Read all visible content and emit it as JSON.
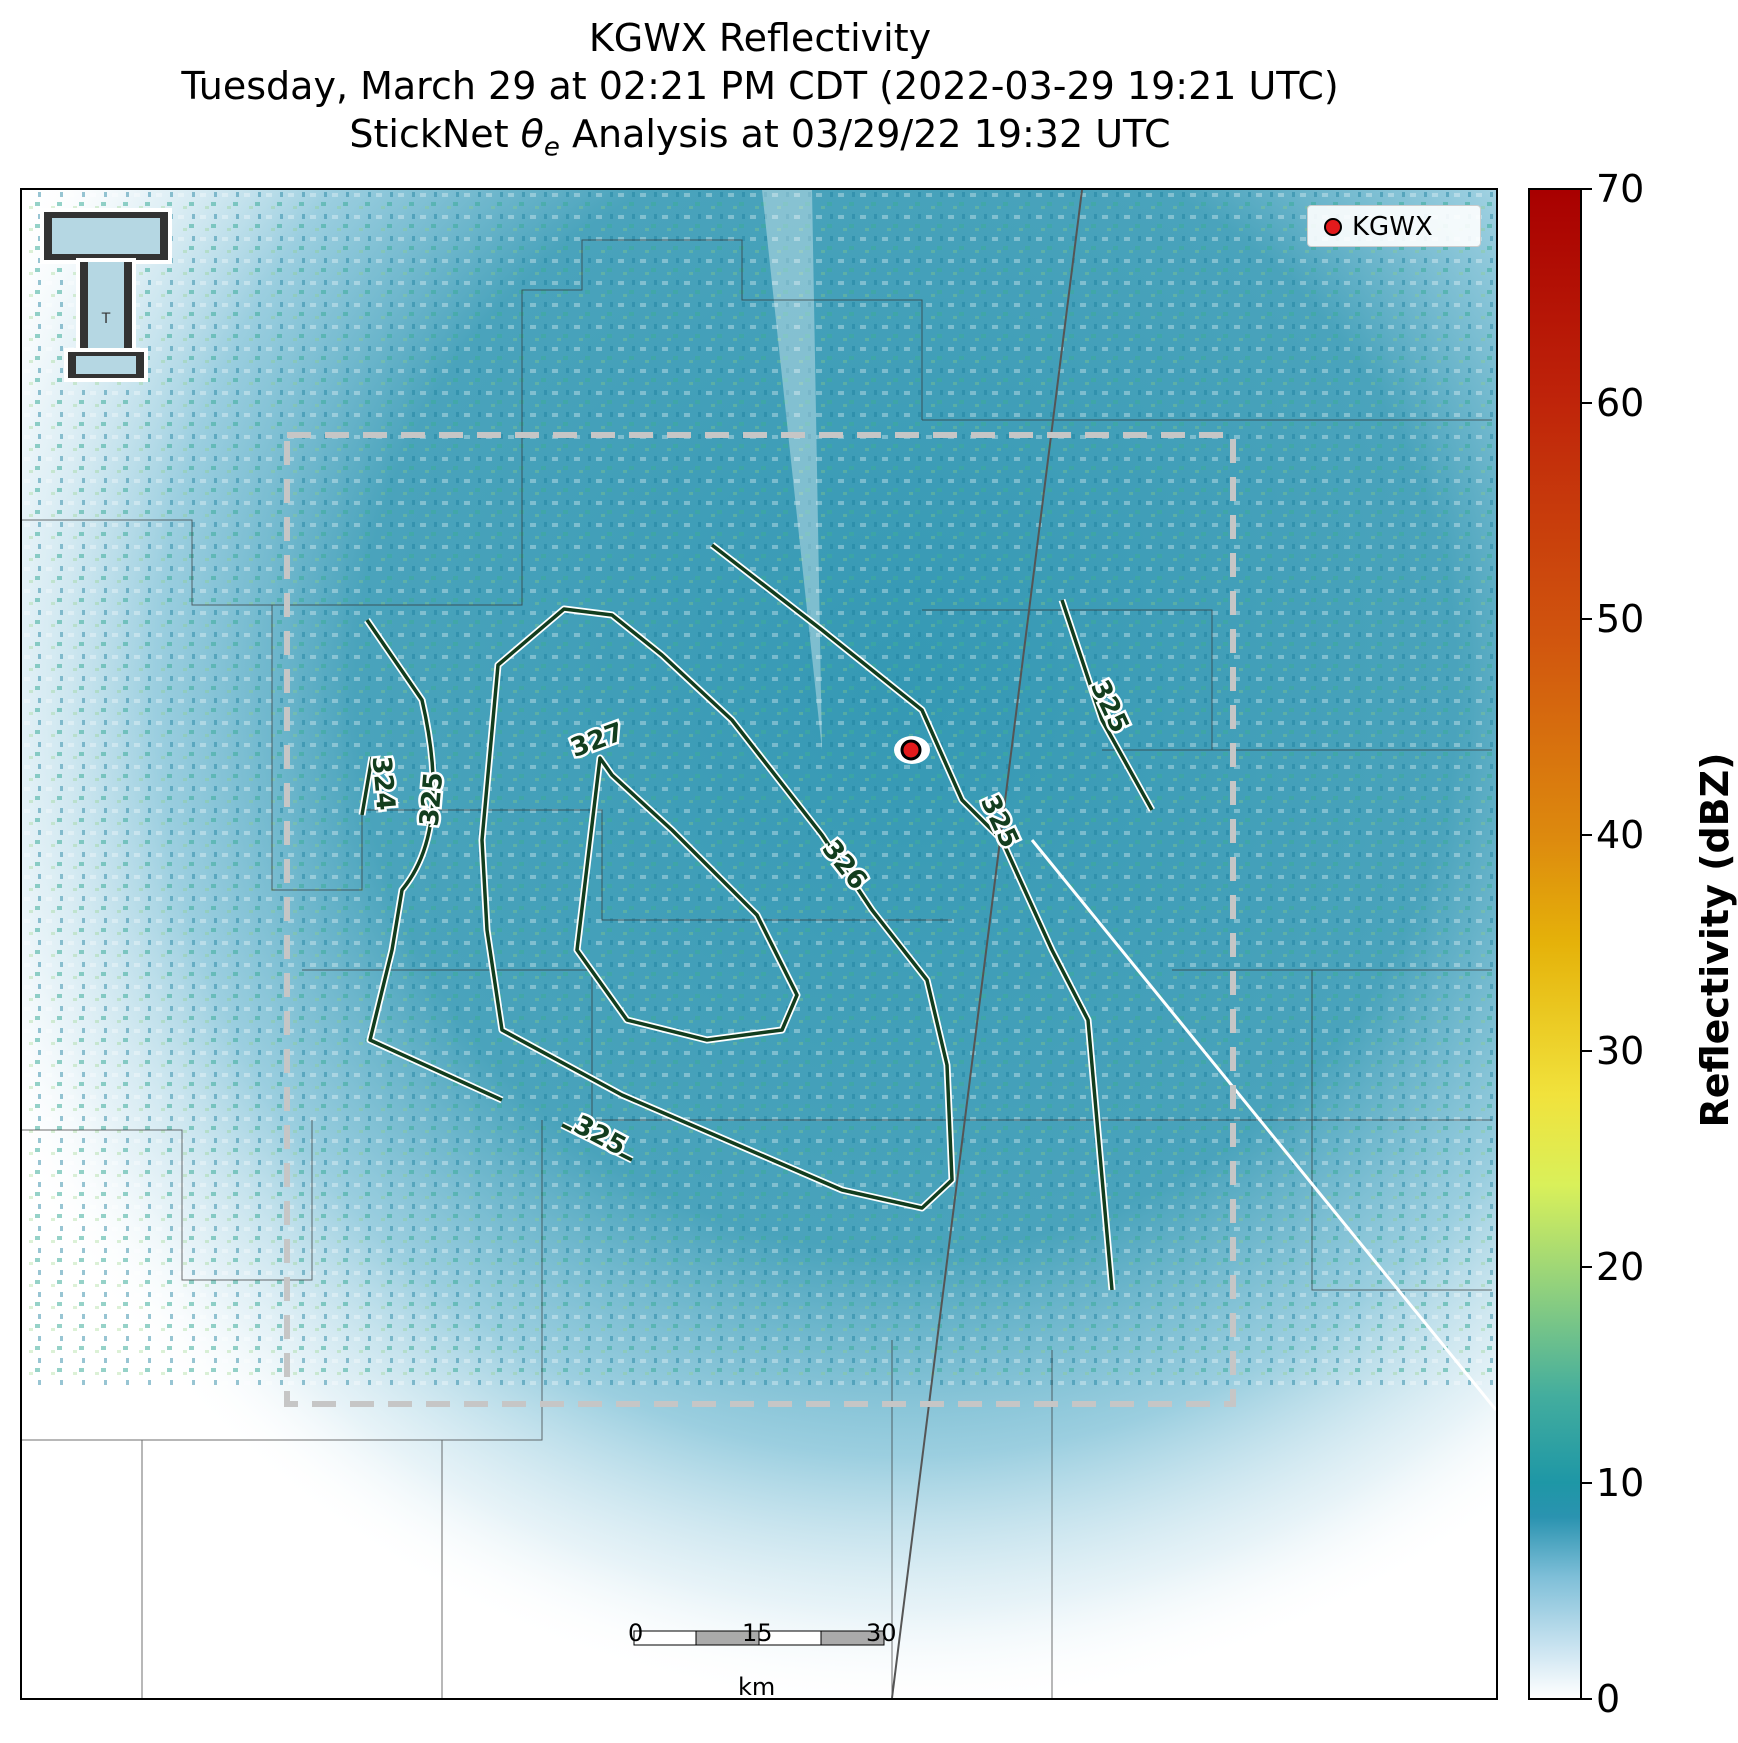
{
  "title": {
    "line1": "KGWX Reflectivity",
    "line2": "Tuesday, March 29 at 02:21 PM CDT (2022-03-29 19:21 UTC)",
    "line3_prefix": "StickNet ",
    "line3_symbol": "θ",
    "line3_subscript": "e",
    "line3_suffix": " Analysis at 03/29/22 19:32 UTC"
  },
  "legend": {
    "label": "KGWX",
    "marker_color": "#e31a1c"
  },
  "colorbar": {
    "label": "Reflectivity (dBZ)",
    "ticks": [
      "0",
      "10",
      "20",
      "30",
      "40",
      "50",
      "60",
      "70"
    ],
    "range": [
      0,
      70
    ],
    "colors": [
      "#ffffff",
      "#2a93b0",
      "#8fd07e",
      "#d9f05a",
      "#e5b20a",
      "#dd8a0e",
      "#d1560e",
      "#a80000"
    ]
  },
  "scalebar": {
    "ticks": [
      "0",
      "15",
      "30"
    ],
    "unit": "km"
  },
  "contours": {
    "color": "#123d1e",
    "labels": [
      "325",
      "324",
      "325",
      "327",
      "326",
      "325",
      "325"
    ],
    "levels": [
      324,
      325,
      326,
      327
    ]
  },
  "logo": {
    "text": "T",
    "colors": [
      "#333333",
      "#b5d7e3",
      "#ffffff"
    ]
  },
  "reflectivity_fill": "#2a93b0"
}
